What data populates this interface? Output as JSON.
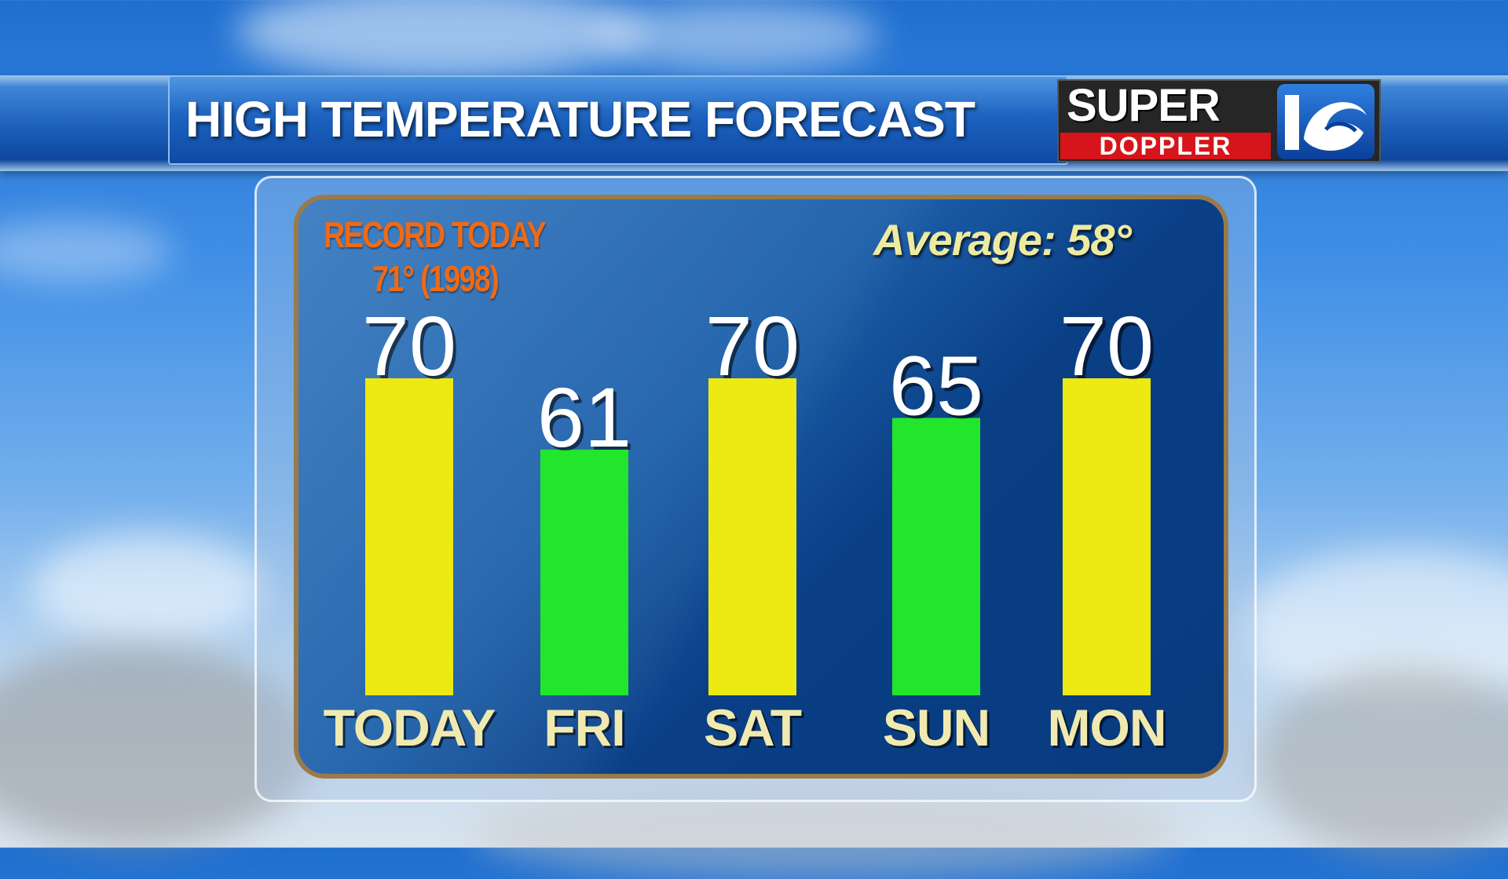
{
  "header": {
    "title": "HIGH TEMPERATURE FORECAST",
    "logo_text_top": "SUPER",
    "logo_text_bottom": "DOPPLER",
    "logo_badge": "10"
  },
  "record": {
    "label": "RECORD TODAY",
    "value": "71° (1998)"
  },
  "average": "Average: 58°",
  "colors": {
    "warm_bar": "#ece913",
    "mild_bar": "#22e62b",
    "panel": "#0a3f86",
    "record_text": "#ee6a16",
    "average_text": "#eeeaa0",
    "day_label": "#f0eab0",
    "logo_red": "#d5151b"
  },
  "chart_data": {
    "type": "bar",
    "title": "HIGH TEMPERATURE FORECAST",
    "xlabel": "",
    "ylabel": "",
    "categories": [
      "TODAY",
      "FRI",
      "SAT",
      "SUN",
      "MON"
    ],
    "values": [
      70,
      61,
      70,
      65,
      70
    ],
    "value_labels": [
      "70",
      "61",
      "70",
      "65",
      "70"
    ],
    "bar_colors": [
      "#ece913",
      "#22e62b",
      "#ece913",
      "#22e62b",
      "#ece913"
    ],
    "ylim": [
      30,
      71
    ],
    "grid": false,
    "legend": "none"
  }
}
